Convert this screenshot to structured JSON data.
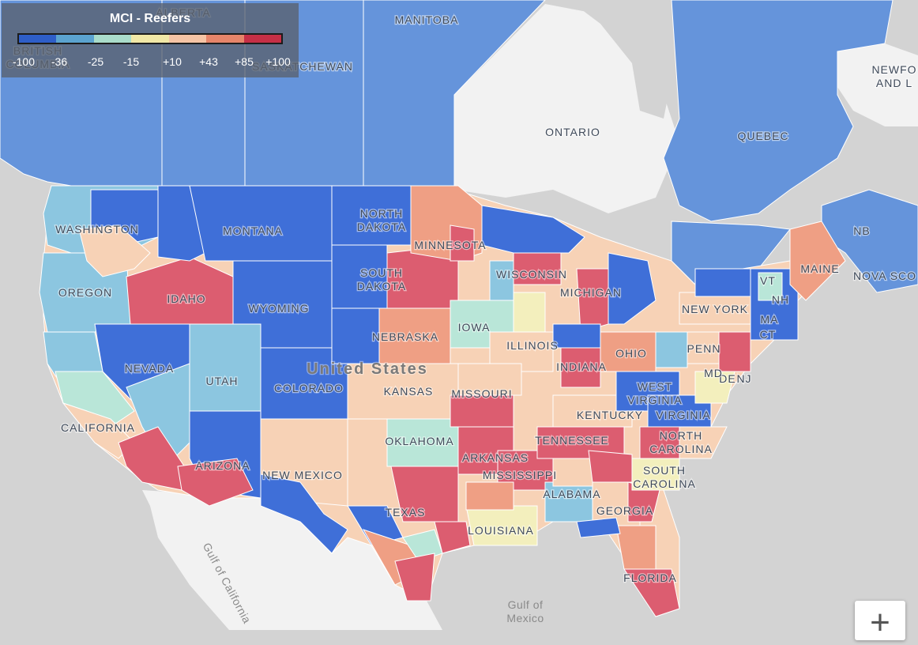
{
  "legend": {
    "title": "MCI - Reefers",
    "ticks": [
      "-100",
      "-36",
      "-25",
      "-15",
      "+10",
      "+43",
      "+85",
      "+100"
    ],
    "colors": [
      "#2e5ec8",
      "#5ba3cf",
      "#a9dcca",
      "#f1e8a6",
      "#f5c4a5",
      "#e6856a",
      "#c62f46"
    ]
  },
  "palette": {
    "ocean": "#d3d3d3",
    "foreign_land": "#f2f2f2",
    "canada_region": "#6594db",
    "strong_negative": "#3f6fd8",
    "light_blue": "#8cc6e0",
    "teal": "#b9e6d8",
    "neutral": "#f3efbd",
    "light_orange": "#f7d2b6",
    "orange": "#ef9f84",
    "red": "#dc5d70"
  },
  "labels": {
    "british_columbia": [
      "BRITISH",
      "COLUMBIA"
    ],
    "alberta": "ALBERTA",
    "saskatchewan": "SASKATCHEWAN",
    "manitoba": "MANITOBA",
    "ontario": "ONTARIO",
    "quebec": "QUEBEC",
    "newfoundland": [
      "NEWFO",
      "AND L"
    ],
    "nb": "NB",
    "nova_scotia": "NOVA SCO",
    "united_states": "United States",
    "washington": "WASHINGTON",
    "oregon": "OREGON",
    "california": "CALIFORNIA",
    "nevada": "NEVADA",
    "idaho": "IDAHO",
    "montana": "MONTANA",
    "wyoming": "WYOMING",
    "utah": "UTAH",
    "arizona": "ARIZONA",
    "colorado": "COLORADO",
    "new_mexico": "NEW MEXICO",
    "north_dakota": [
      "NORTH",
      "DAKOTA"
    ],
    "south_dakota": [
      "SOUTH",
      "DAKOTA"
    ],
    "nebraska": "NEBRASKA",
    "kansas": "KANSAS",
    "oklahoma": "OKLAHOMA",
    "texas": "TEXAS",
    "minnesota": "MINNESOTA",
    "iowa": "IOWA",
    "missouri": "MISSOURI",
    "arkansas": "ARKANSAS",
    "louisiana": "LOUISIANA",
    "wisconsin": "WISCONSIN",
    "illinois": "ILLINOIS",
    "michigan": "MICHIGAN",
    "indiana": "INDIANA",
    "ohio": "OHIO",
    "kentucky": "KENTUCKY",
    "tennessee": "TENNESSEE",
    "mississippi": "MISSISSIPPI",
    "alabama": "ALABAMA",
    "georgia": "GEORGIA",
    "florida": "FLORIDA",
    "south_carolina": [
      "SOUTH",
      "CAROLINA"
    ],
    "north_carolina": [
      "NORTH",
      "CAROLINA"
    ],
    "virginia": "VIRGINIA",
    "west_virginia": [
      "WEST",
      "VIRGINIA"
    ],
    "penn": "PENN",
    "new_york": "NEW YORK",
    "vt": "VT",
    "nh": "NH",
    "ma": "MA",
    "ct": "CT",
    "nj": "NJ",
    "de": "DE",
    "md": "MD",
    "maine": "MAINE",
    "gulf_of_mexico": [
      "Gulf of",
      "Mexico"
    ],
    "gulf_of_california": "Gulf of California"
  },
  "zoom_in_label": "+"
}
